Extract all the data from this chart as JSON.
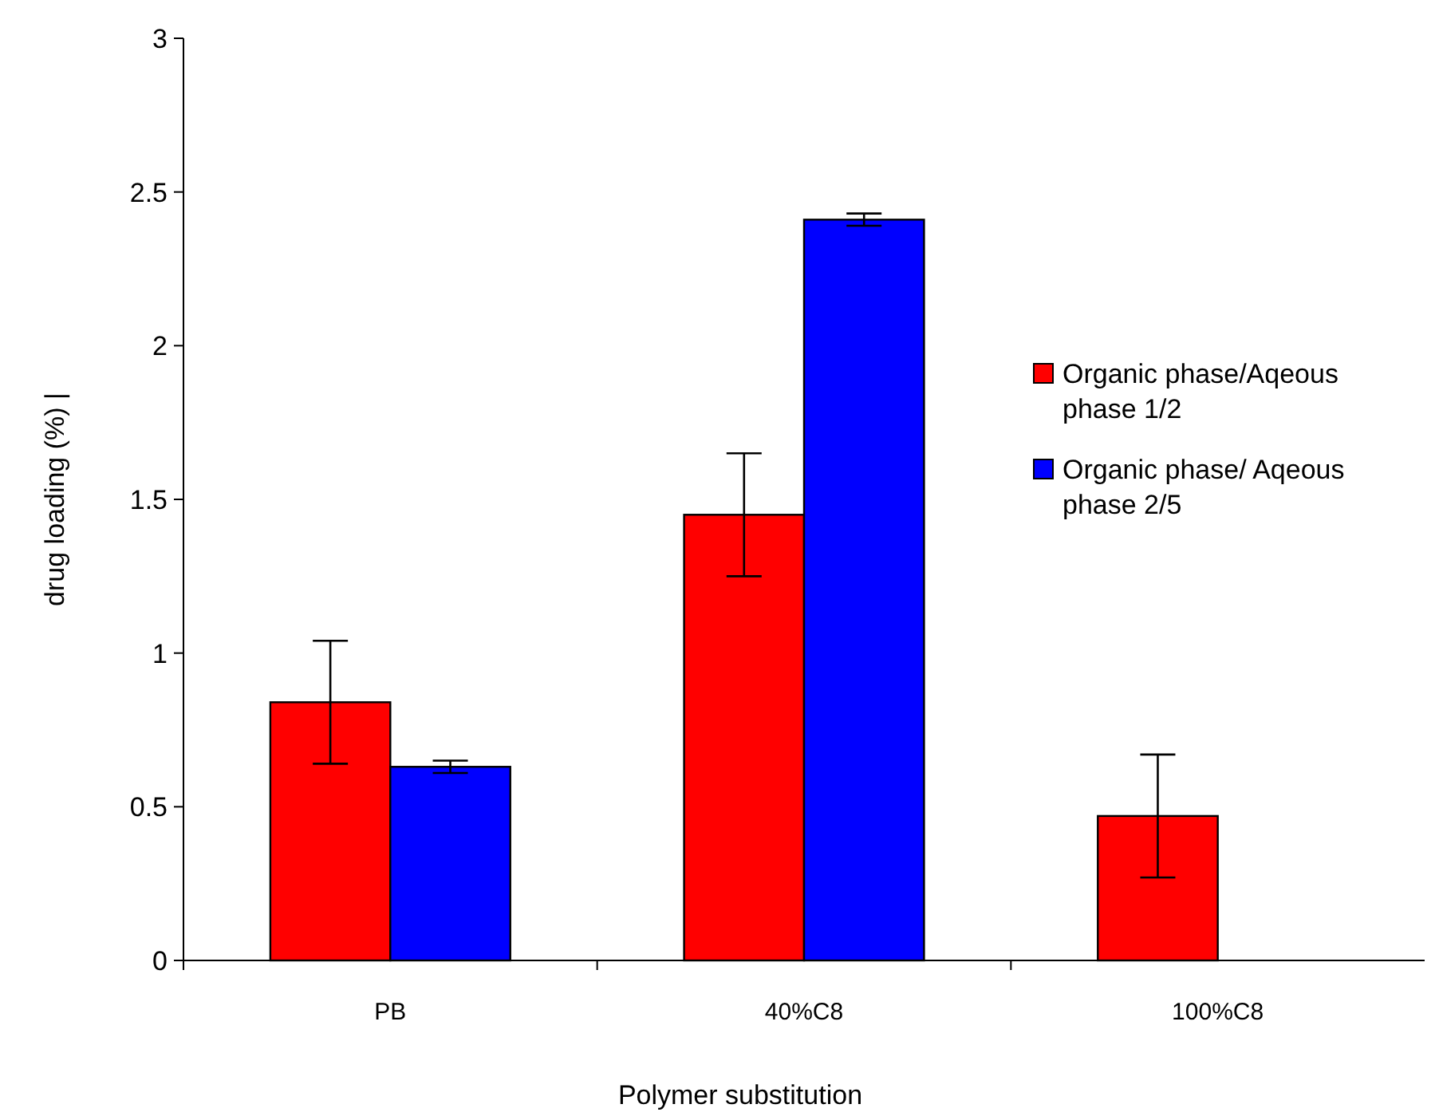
{
  "chart_data": {
    "type": "bar",
    "xlabel": "Polymer substitution",
    "ylabel": "drug loading (%) |",
    "categories": [
      "PB",
      "40%C8",
      "100%C8"
    ],
    "series": [
      {
        "name": "Organic phase/Aqeous phase 1/2",
        "color": "#ff0000",
        "values": [
          0.84,
          1.45,
          0.47
        ],
        "errors": [
          0.2,
          0.2,
          0.2
        ]
      },
      {
        "name": "Organic phase/ Aqeous phase 2/5",
        "color": "#0000ff",
        "values": [
          0.63,
          2.41,
          null
        ],
        "errors": [
          0.02,
          0.02,
          null
        ]
      }
    ],
    "ylim": [
      0,
      3
    ],
    "yticks": [
      0,
      0.5,
      1,
      1.5,
      2,
      2.5,
      3
    ],
    "grid": false,
    "legend": "right"
  }
}
